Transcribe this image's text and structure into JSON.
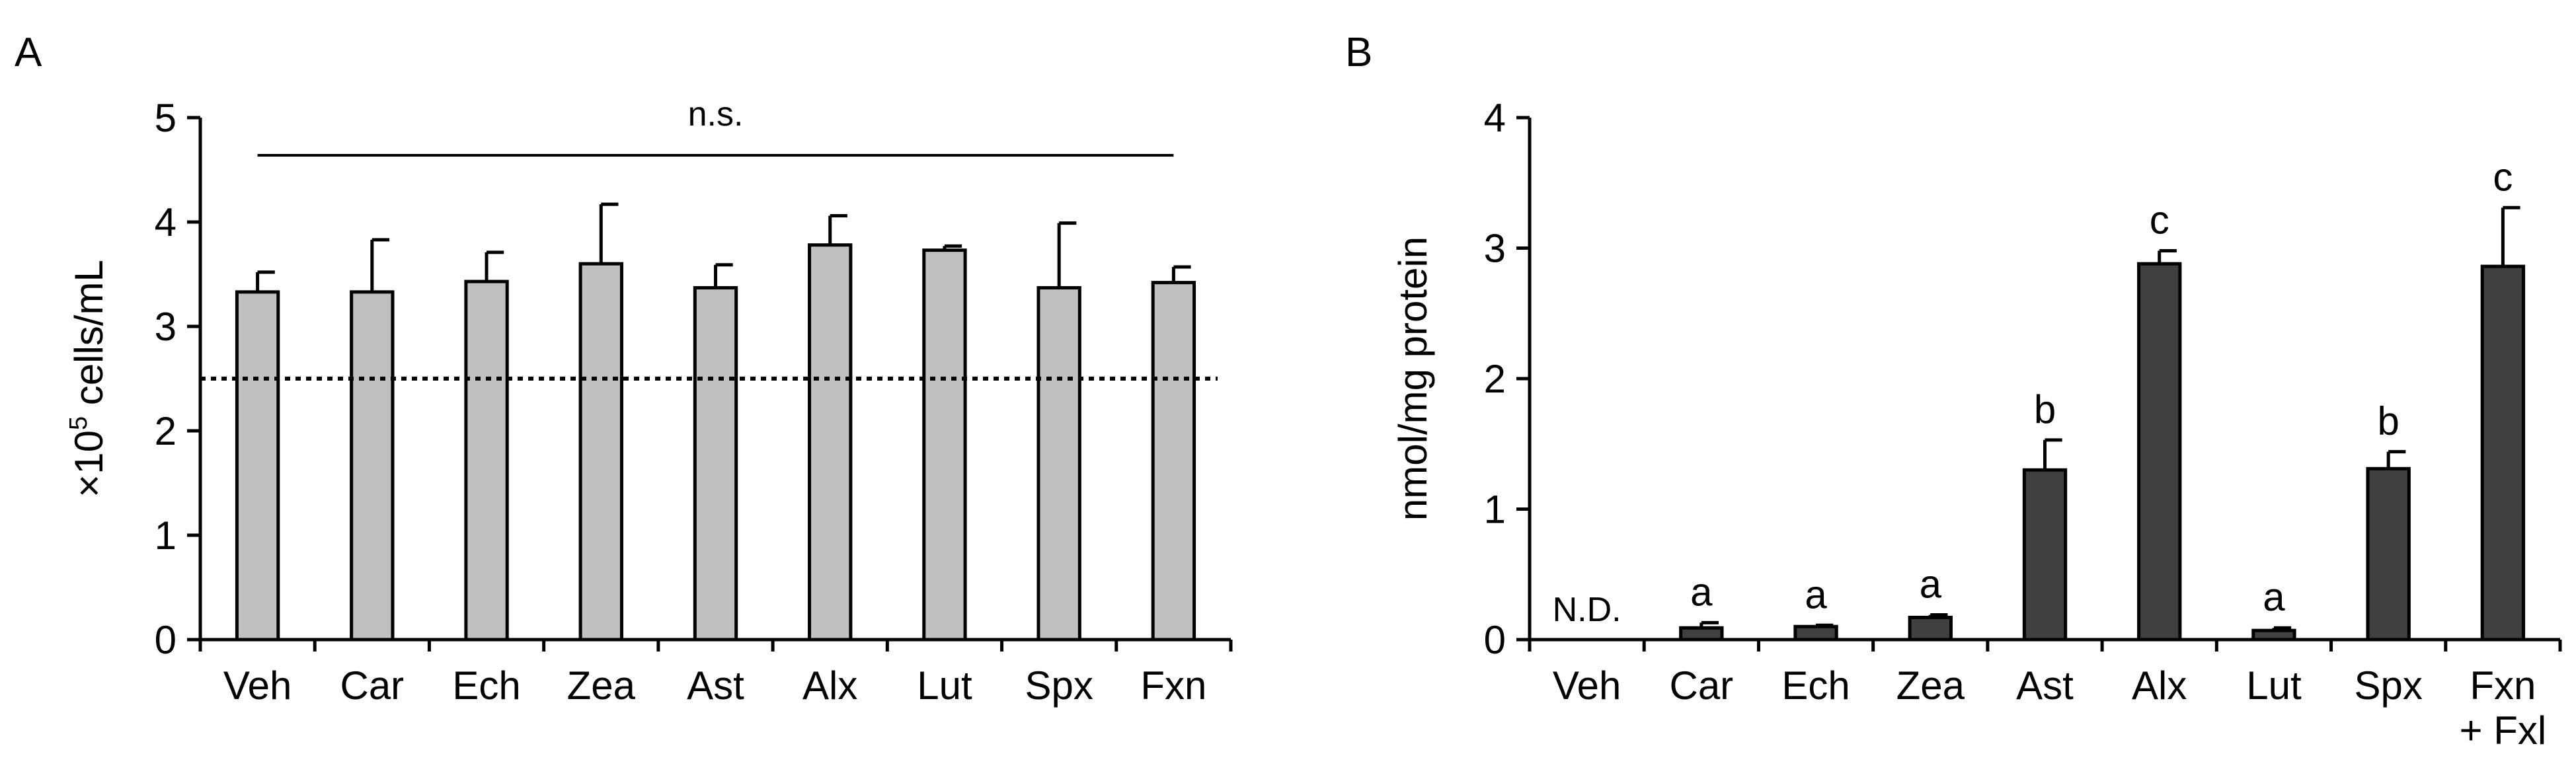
{
  "chart_data": [
    {
      "panel_label": "A",
      "type": "bar",
      "ylabel_prefix": "×10",
      "ylabel_sup": "5",
      "ylabel_suffix": " cells/mL",
      "ylim": [
        0,
        5
      ],
      "yticks": [
        "0",
        "1",
        "2",
        "3",
        "4",
        "5"
      ],
      "categories": [
        "Veh",
        "Car",
        "Ech",
        "Zea",
        "Ast",
        "Alx",
        "Lut",
        "Spx",
        "Fxn"
      ],
      "values": [
        3.33,
        3.33,
        3.43,
        3.6,
        3.37,
        3.78,
        3.73,
        3.37,
        3.42
      ],
      "errors": [
        0.19,
        0.5,
        0.28,
        0.57,
        0.22,
        0.28,
        0.04,
        0.62,
        0.15
      ],
      "reference_line": 2.5,
      "significance_label": "n.s.",
      "bar_color": "#c0c0c0",
      "grid": false
    },
    {
      "panel_label": "B",
      "type": "bar",
      "ylabel": "nmol/mg protein",
      "ylim": [
        0,
        4
      ],
      "yticks": [
        "0",
        "1",
        "2",
        "3",
        "4"
      ],
      "categories": [
        "Veh",
        "Car",
        "Ech",
        "Zea",
        "Ast",
        "Alx",
        "Lut",
        "Spx",
        "Fxn\n+ Fxl"
      ],
      "values": [
        0,
        0.09,
        0.1,
        0.17,
        1.3,
        2.88,
        0.07,
        1.31,
        2.86
      ],
      "errors": [
        0,
        0.04,
        0.01,
        0.02,
        0.23,
        0.1,
        0.02,
        0.13,
        0.45
      ],
      "annotations": [
        "N.D.",
        "a",
        "a",
        "a",
        "b",
        "c",
        "a",
        "b",
        "c"
      ],
      "bar_color": "#404040",
      "grid": false
    }
  ]
}
